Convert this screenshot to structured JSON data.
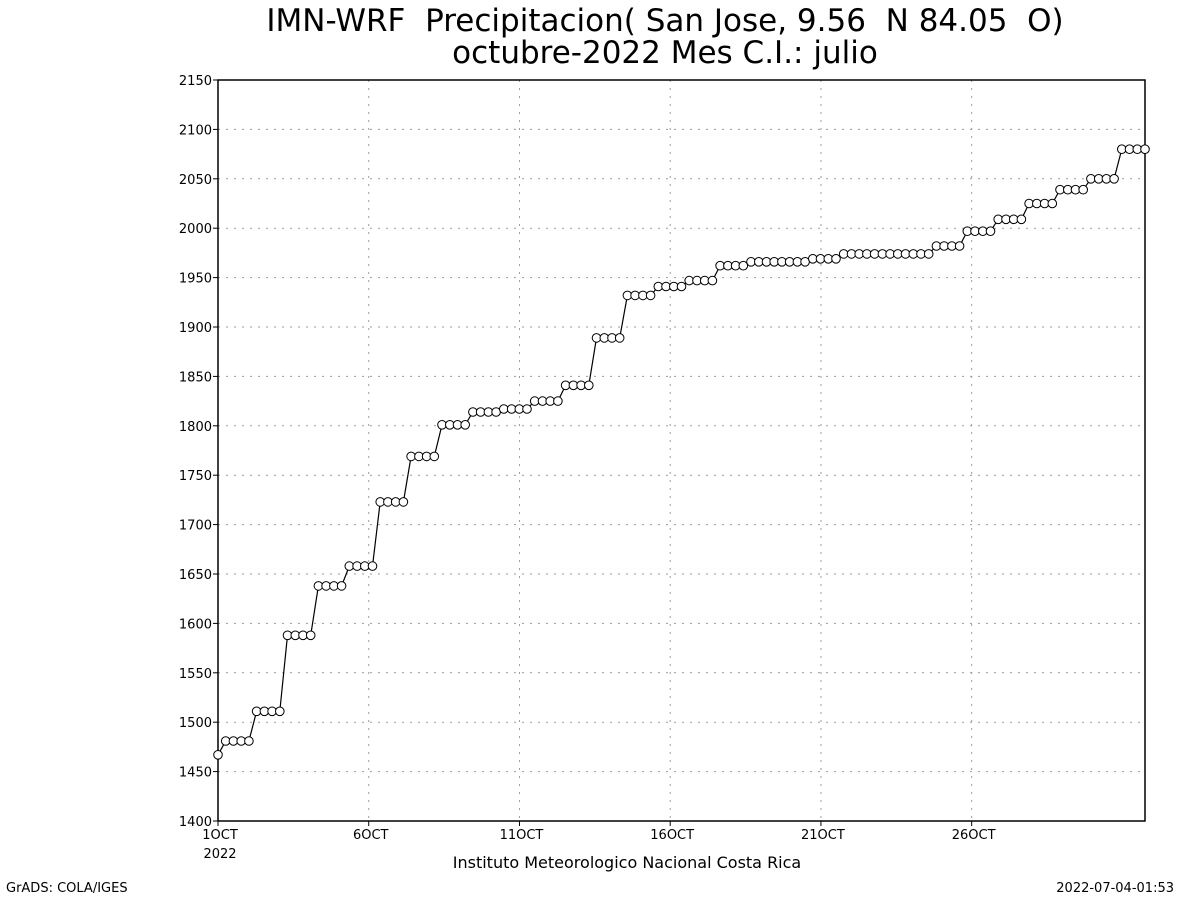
{
  "chart_data": {
    "type": "line",
    "title": "IMN-WRF  Precipitacion( San Jose, 9.56  N 84.05  O)",
    "subtitle": "octubre-2022 Mes C.I.: julio",
    "xlabel": "Instituto Meteorologico Nacional Costa Rica",
    "ylabel": "",
    "ylim": [
      1400,
      2150
    ],
    "yticks": [
      1400,
      1450,
      1500,
      1550,
      1600,
      1650,
      1700,
      1750,
      1800,
      1850,
      1900,
      1950,
      2000,
      2050,
      2100,
      2150
    ],
    "xlim_days": [
      1,
      31
    ],
    "xticks": [
      {
        "label": "1OCT",
        "sublabel": "2022"
      },
      {
        "label": "6OCT",
        "sublabel": ""
      },
      {
        "label": "11OCT",
        "sublabel": ""
      },
      {
        "label": "16OCT",
        "sublabel": ""
      },
      {
        "label": "21OCT",
        "sublabel": ""
      },
      {
        "label": "26OCT",
        "sublabel": ""
      }
    ],
    "grid": true,
    "marker": "open-circle",
    "series": [
      {
        "name": "",
        "values": [
          1467,
          1481,
          1481,
          1481,
          1481,
          1511,
          1511,
          1511,
          1511,
          1588,
          1588,
          1588,
          1588,
          1638,
          1638,
          1638,
          1638,
          1658,
          1658,
          1658,
          1658,
          1723,
          1723,
          1723,
          1723,
          1769,
          1769,
          1769,
          1769,
          1801,
          1801,
          1801,
          1801,
          1814,
          1814,
          1814,
          1814,
          1817,
          1817,
          1817,
          1817,
          1825,
          1825,
          1825,
          1825,
          1841,
          1841,
          1841,
          1841,
          1889,
          1889,
          1889,
          1889,
          1932,
          1932,
          1932,
          1932,
          1941,
          1941,
          1941,
          1941,
          1947,
          1947,
          1947,
          1947,
          1962,
          1962,
          1962,
          1962,
          1966,
          1966,
          1966,
          1966,
          1966,
          1966,
          1966,
          1966,
          1969,
          1969,
          1969,
          1969,
          1974,
          1974,
          1974,
          1974,
          1974,
          1974,
          1974,
          1974,
          1974,
          1974,
          1974,
          1974,
          1982,
          1982,
          1982,
          1982,
          1997,
          1997,
          1997,
          1997,
          2009,
          2009,
          2009,
          2009,
          2025,
          2025,
          2025,
          2025,
          2039,
          2039,
          2039,
          2039,
          2050,
          2050,
          2050,
          2050,
          2080,
          2080,
          2080,
          2080
        ]
      }
    ]
  },
  "footer": {
    "left": "GrADS: COLA/IGES",
    "right": "2022-07-04-01:53"
  }
}
